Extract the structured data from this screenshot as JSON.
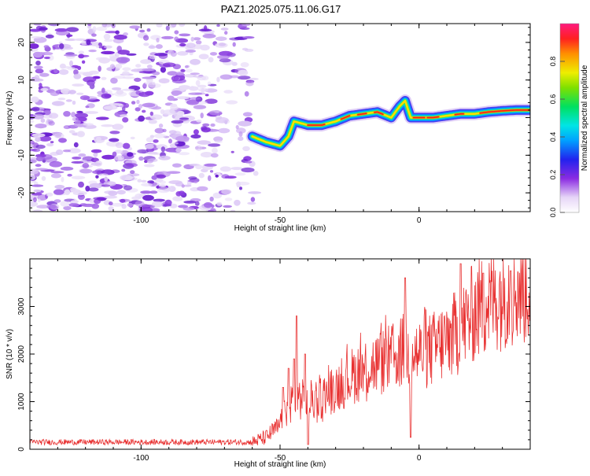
{
  "title": "PAZ1.2025.075.11.06.G17",
  "chart_data": [
    {
      "type": "heatmap",
      "xlabel": "Height of straight line (km)",
      "ylabel": "Frequency (Hz)",
      "xlim": [
        -140,
        40
      ],
      "ylim": [
        -25,
        25
      ],
      "xticks": [
        -100,
        -50,
        0
      ],
      "yticks": [
        -20,
        -10,
        0,
        10,
        20
      ],
      "colorbar": {
        "label": "Normalized spectral amplitude",
        "range": [
          0.0,
          1.0
        ],
        "ticks": [
          0.0,
          0.2,
          0.4,
          0.6,
          0.8
        ]
      },
      "ridge": {
        "x": [
          -60,
          -55,
          -50,
          -47,
          -45,
          -40,
          -35,
          -30,
          -25,
          -20,
          -15,
          -10,
          -7,
          -5,
          -3,
          0,
          5,
          10,
          15,
          20,
          25,
          30,
          35,
          40
        ],
        "y": [
          -5,
          -6.5,
          -7.5,
          -5,
          -1,
          -2,
          -2,
          -1,
          0.5,
          1,
          1.5,
          0,
          3,
          4.5,
          0,
          0,
          0,
          0.5,
          1,
          1,
          1.5,
          1.8,
          2,
          2
        ]
      },
      "noise_region_x": [
        -140,
        -58
      ]
    },
    {
      "type": "line",
      "xlabel": "Height of straight line (km)",
      "ylabel": "SNR (10 * v/v)",
      "xlim": [
        -140,
        40
      ],
      "ylim": [
        0,
        4000
      ],
      "xticks": [
        -100,
        -50,
        0
      ],
      "yticks": [
        0,
        1000,
        2000,
        3000
      ],
      "series": [
        {
          "color": "#e83030",
          "trend": {
            "x": [
              -140,
              -60,
              -55,
              -50,
              -47,
              -45,
              -40,
              -35,
              -30,
              -25,
              -20,
              -15,
              -10,
              -5,
              0,
              5,
              10,
              15,
              20,
              25,
              30,
              35,
              40
            ],
            "y": [
              150,
              150,
              250,
              500,
              900,
              1100,
              1000,
              1100,
              1300,
              1500,
              1700,
              1800,
              1900,
              2100,
              2000,
              2100,
              2300,
              2500,
              2900,
              3100,
              3300,
              3400,
              3450
            ]
          },
          "spikes": [
            {
              "x": -49,
              "y": 1300
            },
            {
              "x": -47,
              "y": 1700
            },
            {
              "x": -45,
              "y": 1900
            },
            {
              "x": -44,
              "y": 2800
            },
            {
              "x": -41,
              "y": 2000
            },
            {
              "x": -40,
              "y": 100
            },
            {
              "x": -5,
              "y": 3600
            },
            {
              "x": -3,
              "y": 250
            },
            {
              "x": 15,
              "y": 3900
            },
            {
              "x": 23,
              "y": 3700
            },
            {
              "x": 33,
              "y": 3750
            }
          ]
        }
      ]
    }
  ]
}
